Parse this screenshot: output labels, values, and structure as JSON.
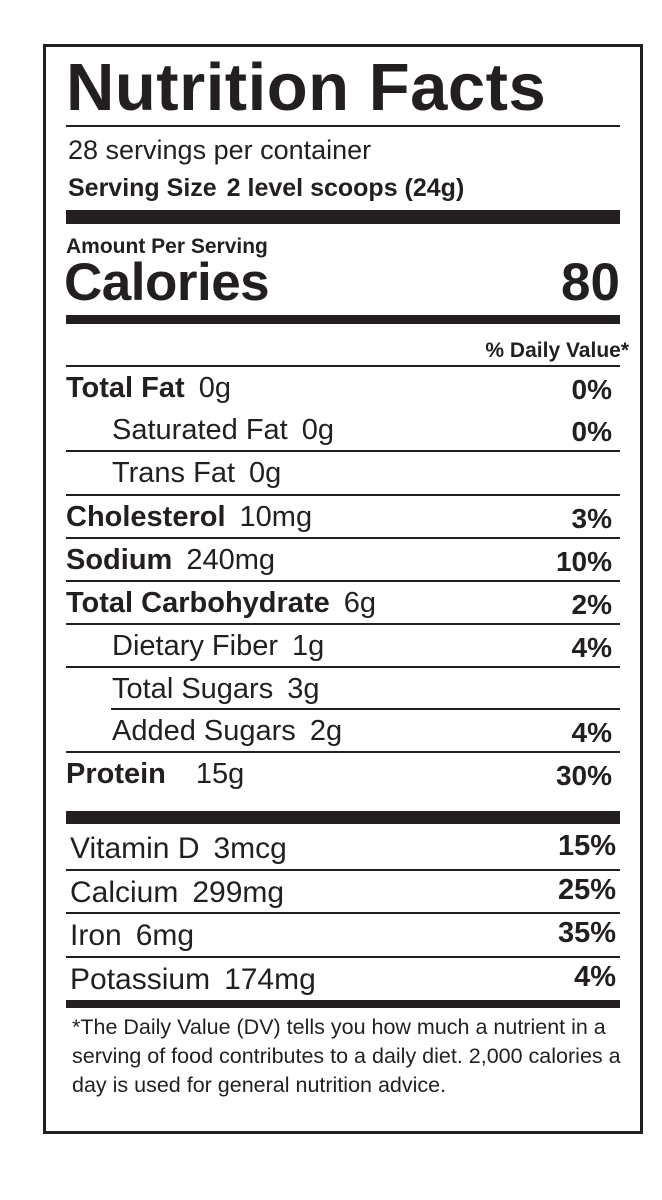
{
  "title": "Nutrition Facts",
  "servings_per_container": "28 servings per container",
  "serving_size": {
    "label": "Serving Size",
    "value": "2 level scoops (24g)"
  },
  "amount_per_serving": "Amount Per Serving",
  "calories": {
    "label": "Calories",
    "value": "80"
  },
  "daily_value_header": "% Daily Value*",
  "nutrients": [
    {
      "name": "Total Fat",
      "amount": "0g",
      "dv": "0%"
    },
    {
      "name": "Saturated Fat",
      "amount": "0g",
      "dv": "0%"
    },
    {
      "name": "Trans Fat",
      "amount": "0g",
      "dv": ""
    },
    {
      "name": "Cholesterol",
      "amount": "10mg",
      "dv": "3%"
    },
    {
      "name": "Sodium",
      "amount": "240mg",
      "dv": "10%"
    },
    {
      "name": "Total Carbohydrate",
      "amount": "6g",
      "dv": "2%"
    },
    {
      "name": "Dietary Fiber",
      "amount": "1g",
      "dv": "4%"
    },
    {
      "name": "Total Sugars",
      "amount": "3g",
      "dv": ""
    },
    {
      "name": "Added Sugars",
      "amount": "2g",
      "dv": "4%"
    },
    {
      "name": "Protein",
      "amount": "15g",
      "dv": "30%"
    }
  ],
  "vitamins": [
    {
      "name": "Vitamin D",
      "amount": "3mcg",
      "dv": "15%"
    },
    {
      "name": "Calcium",
      "amount": "299mg",
      "dv": "25%"
    },
    {
      "name": "Iron",
      "amount": "6mg",
      "dv": "35%"
    },
    {
      "name": "Potassium",
      "amount": "174mg",
      "dv": "4%"
    }
  ],
  "footnote": "*The Daily Value (DV) tells you how much a nutrient in a serving of food contributes to a daily diet. 2,000 calories a day is used for general nutrition advice."
}
